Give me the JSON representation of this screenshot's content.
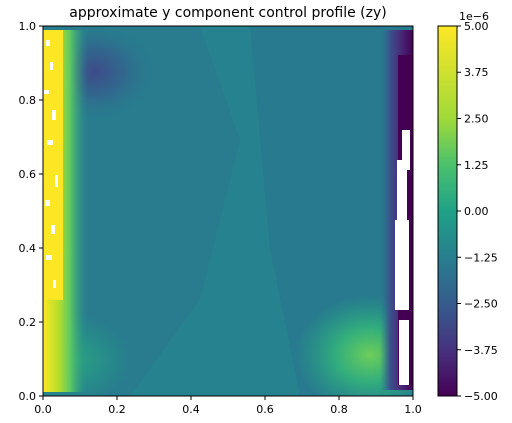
{
  "chart_data": {
    "type": "heatmap",
    "title": "approximate y component control profile (zy)",
    "xlabel": "",
    "ylabel": "",
    "xlim": [
      0.0,
      1.0
    ],
    "ylim": [
      0.0,
      1.0
    ],
    "x_ticks": [
      "0.0",
      "0.2",
      "0.4",
      "0.6",
      "0.8",
      "1.0"
    ],
    "y_ticks": [
      "0.0",
      "0.2",
      "0.4",
      "0.6",
      "0.8",
      "1.0"
    ],
    "grid": false,
    "colorbar": {
      "label": "",
      "offset_text": "1e−6",
      "range": [
        -5.0,
        5.0
      ],
      "ticks": [
        "5.00",
        "3.75",
        "2.50",
        "1.25",
        "0.00",
        "−1.25",
        "−2.50",
        "−3.75",
        "−5.00"
      ],
      "colormap": "viridis"
    },
    "features": [
      {
        "kind": "high-strip",
        "x_range": [
          0.0,
          0.06
        ],
        "y_range": [
          0.05,
          0.98
        ],
        "value": 5.0
      },
      {
        "kind": "low-strip",
        "x_range": [
          0.96,
          1.0
        ],
        "y_range": [
          0.02,
          0.95
        ],
        "value": -5.0
      },
      {
        "kind": "low-blob",
        "x": 0.13,
        "y": 0.86,
        "value": -3.0
      },
      {
        "kind": "high-blob",
        "x": 0.88,
        "y": 0.09,
        "value": 3.0
      },
      {
        "kind": "mild-high",
        "x": 0.06,
        "y": 0.1,
        "value": 1.2
      },
      {
        "kind": "background",
        "value": 0.0
      }
    ]
  }
}
